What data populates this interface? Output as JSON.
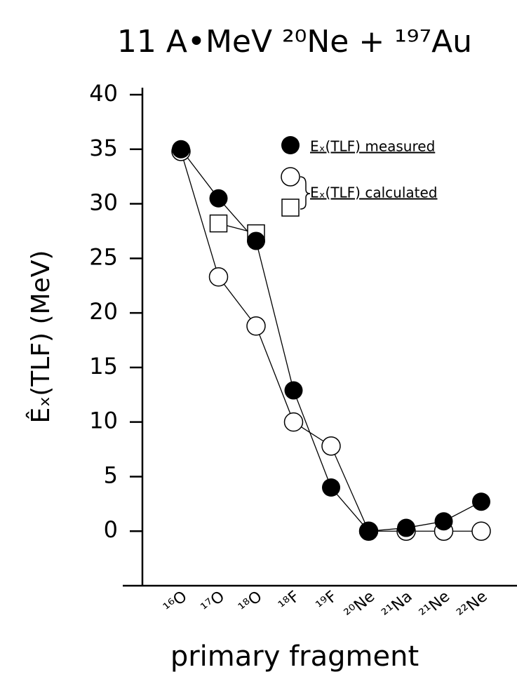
{
  "chart_data": {
    "type": "line",
    "title": "11 A•MeV  ²⁰Ne + ¹⁹⁷Au",
    "y_label": "Êₓ(TLF) (MeV)",
    "x_label": "primary fragment",
    "categories": [
      "¹⁶O",
      "¹⁷O",
      "¹⁸O",
      "¹⁸F",
      "¹⁹F",
      "²⁰Ne",
      "²¹Na",
      "²¹Ne",
      "²²Ne"
    ],
    "series": [
      {
        "name": "Eₓ(TLF) measured",
        "marker": "filled-circle",
        "color": "#000000",
        "values": [
          35,
          30.5,
          26.6,
          12.9,
          4.0,
          0,
          0.3,
          0.9,
          2.7
        ]
      },
      {
        "name": "Eₓ(TLF) calculated",
        "marker": "open-circle",
        "color": "#000000",
        "values": [
          34.8,
          23.3,
          18.8,
          10.0,
          7.8,
          0,
          0,
          0,
          0
        ]
      },
      {
        "marker": "open-square",
        "color": "#000000",
        "values": [
          null,
          28.2,
          27.3,
          null,
          null,
          null,
          null,
          null,
          null
        ]
      }
    ],
    "ylim": [
      -5,
      40
    ],
    "yticks": [
      0,
      5,
      10,
      15,
      20,
      25,
      30,
      35,
      40
    ]
  }
}
